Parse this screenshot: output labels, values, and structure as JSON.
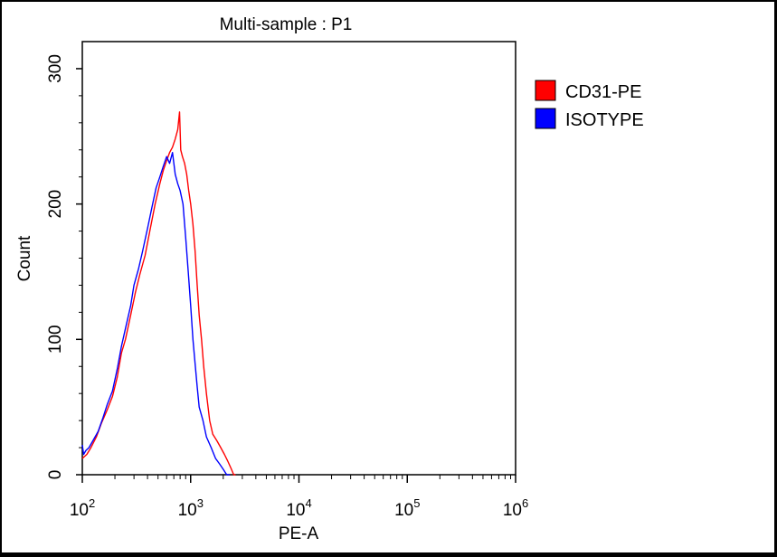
{
  "chart_data": {
    "type": "line",
    "title": "Multi-sample : P1",
    "xlabel": "PE-A",
    "ylabel": "Count",
    "x_scale": "log",
    "xlim": [
      100,
      1000000
    ],
    "ylim": [
      0,
      320
    ],
    "x_ticks": [
      {
        "value": 100,
        "base": "10",
        "exp": "2"
      },
      {
        "value": 1000,
        "base": "10",
        "exp": "3"
      },
      {
        "value": 10000,
        "base": "10",
        "exp": "4"
      },
      {
        "value": 100000,
        "base": "10",
        "exp": "5"
      },
      {
        "value": 1000000,
        "base": "10",
        "exp": "6"
      }
    ],
    "y_ticks": [
      {
        "value": 0,
        "label": "0"
      },
      {
        "value": 100,
        "label": "100"
      },
      {
        "value": 200,
        "label": "200"
      },
      {
        "value": 300,
        "label": "300"
      }
    ],
    "grid": false,
    "legend_position": "right",
    "series": [
      {
        "name": "CD31-PE",
        "color": "#ff0000",
        "points": [
          [
            100,
            12
          ],
          [
            110,
            15
          ],
          [
            120,
            20
          ],
          [
            135,
            28
          ],
          [
            150,
            38
          ],
          [
            170,
            48
          ],
          [
            190,
            58
          ],
          [
            210,
            72
          ],
          [
            230,
            90
          ],
          [
            250,
            100
          ],
          [
            280,
            118
          ],
          [
            310,
            135
          ],
          [
            340,
            148
          ],
          [
            380,
            162
          ],
          [
            420,
            180
          ],
          [
            470,
            200
          ],
          [
            520,
            215
          ],
          [
            560,
            225
          ],
          [
            600,
            232
          ],
          [
            640,
            238
          ],
          [
            680,
            242
          ],
          [
            720,
            248
          ],
          [
            760,
            255
          ],
          [
            790,
            268
          ],
          [
            810,
            240
          ],
          [
            840,
            235
          ],
          [
            880,
            230
          ],
          [
            920,
            222
          ],
          [
            960,
            210
          ],
          [
            1000,
            200
          ],
          [
            1050,
            185
          ],
          [
            1100,
            165
          ],
          [
            1150,
            140
          ],
          [
            1200,
            118
          ],
          [
            1260,
            100
          ],
          [
            1320,
            80
          ],
          [
            1400,
            60
          ],
          [
            1500,
            40
          ],
          [
            1600,
            30
          ],
          [
            1750,
            25
          ],
          [
            1900,
            20
          ],
          [
            2050,
            15
          ],
          [
            2200,
            10
          ],
          [
            2350,
            5
          ],
          [
            2500,
            0
          ],
          [
            2600,
            0
          ]
        ]
      },
      {
        "name": "ISOTYPE",
        "color": "#0000ff",
        "points": [
          [
            100,
            22
          ],
          [
            103,
            15
          ],
          [
            108,
            18
          ],
          [
            115,
            20
          ],
          [
            125,
            25
          ],
          [
            140,
            32
          ],
          [
            155,
            42
          ],
          [
            170,
            52
          ],
          [
            190,
            62
          ],
          [
            210,
            78
          ],
          [
            230,
            95
          ],
          [
            250,
            108
          ],
          [
            280,
            125
          ],
          [
            300,
            140
          ],
          [
            330,
            152
          ],
          [
            360,
            165
          ],
          [
            400,
            182
          ],
          [
            440,
            198
          ],
          [
            480,
            212
          ],
          [
            520,
            220
          ],
          [
            560,
            228
          ],
          [
            600,
            235
          ],
          [
            640,
            230
          ],
          [
            680,
            238
          ],
          [
            720,
            222
          ],
          [
            760,
            215
          ],
          [
            800,
            210
          ],
          [
            850,
            200
          ],
          [
            900,
            175
          ],
          [
            950,
            150
          ],
          [
            1000,
            125
          ],
          [
            1050,
            100
          ],
          [
            1100,
            82
          ],
          [
            1150,
            65
          ],
          [
            1200,
            50
          ],
          [
            1300,
            40
          ],
          [
            1400,
            28
          ],
          [
            1550,
            20
          ],
          [
            1700,
            12
          ],
          [
            1850,
            8
          ],
          [
            2000,
            4
          ],
          [
            2150,
            0
          ],
          [
            2300,
            0
          ]
        ]
      }
    ]
  }
}
